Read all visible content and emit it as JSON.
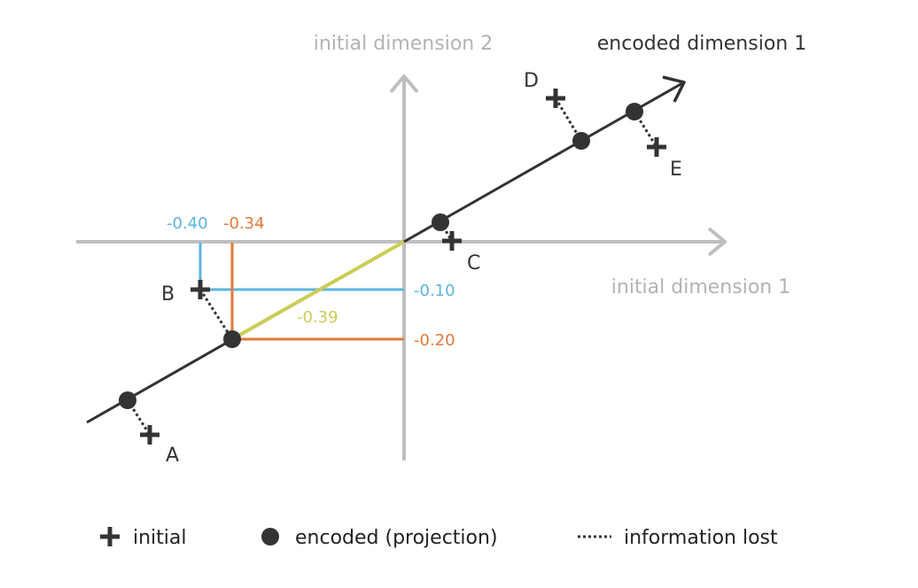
{
  "axes": {
    "dim1_label": "initial dimension 1",
    "dim2_label": "initial dimension 2",
    "encoded_label": "encoded dimension 1",
    "axis_color": "#bfbfbf",
    "encoded_color": "#333333"
  },
  "points": [
    {
      "label": "A"
    },
    {
      "label": "B"
    },
    {
      "label": "C"
    },
    {
      "label": "D"
    },
    {
      "label": "E"
    }
  ],
  "annotations": {
    "b_initial_x": "-0.40",
    "b_encoded_x": "-0.34",
    "b_initial_y": "-0.10",
    "b_encoded_y": "-0.20",
    "b_encoded_value": "-0.39",
    "initial_color": "#5bb4e0",
    "encoded_color": "#e07a3a",
    "projection_color": "#cccc55"
  },
  "legend": {
    "initial": "initial",
    "encoded": "encoded (projection)",
    "lost": "information lost"
  }
}
